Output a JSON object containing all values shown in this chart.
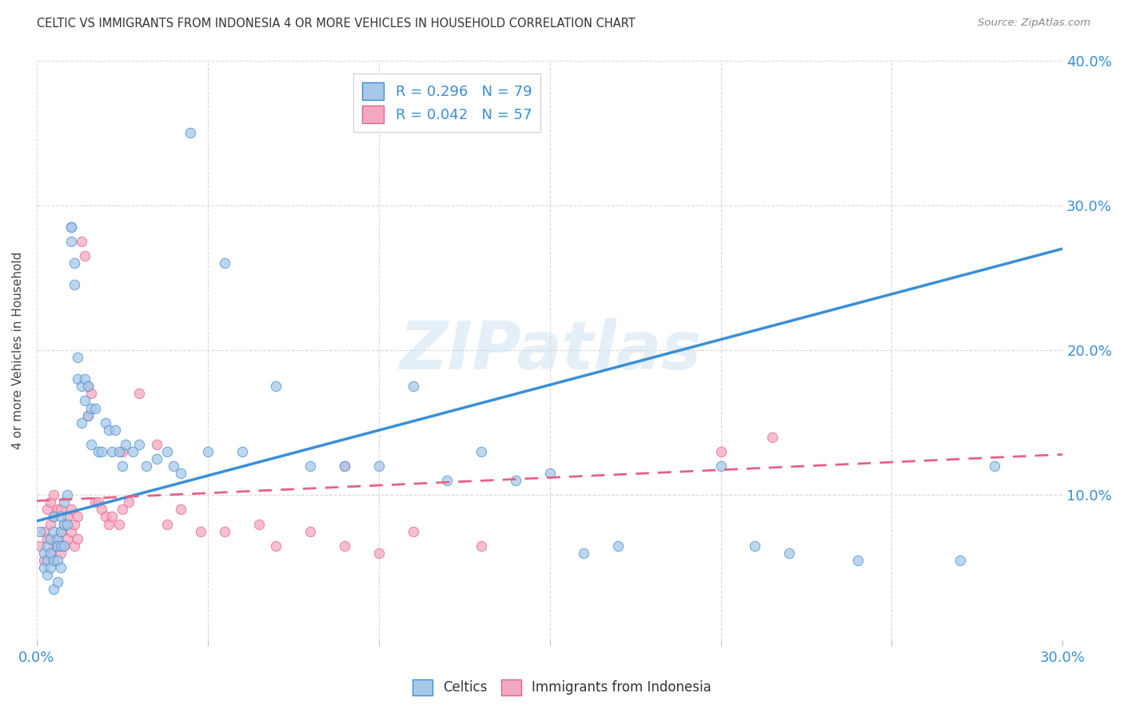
{
  "title": "CELTIC VS IMMIGRANTS FROM INDONESIA 4 OR MORE VEHICLES IN HOUSEHOLD CORRELATION CHART",
  "source": "Source: ZipAtlas.com",
  "ylabel": "4 or more Vehicles in Household",
  "xlim": [
    0.0,
    0.3
  ],
  "ylim": [
    0.0,
    0.4
  ],
  "xticks": [
    0.0,
    0.05,
    0.1,
    0.15,
    0.2,
    0.25,
    0.3
  ],
  "yticks": [
    0.0,
    0.1,
    0.2,
    0.3,
    0.4
  ],
  "legend_labels": [
    "Celtics",
    "Immigrants from Indonesia"
  ],
  "R_celtics": 0.296,
  "N_celtics": 79,
  "R_indonesia": 0.042,
  "N_indonesia": 57,
  "color_celtics": "#a8c8e8",
  "color_indonesia": "#f4a8c0",
  "color_line_celtics": "#3a8fd4",
  "color_line_indonesia": "#e8608a",
  "watermark": "ZIPatlas",
  "blue_line_x0": 0.0,
  "blue_line_y0": 0.082,
  "blue_line_x1": 0.3,
  "blue_line_y1": 0.27,
  "pink_line_x0": 0.0,
  "pink_line_y0": 0.096,
  "pink_line_x1": 0.3,
  "pink_line_y1": 0.128,
  "celtics_x": [
    0.001,
    0.002,
    0.002,
    0.003,
    0.003,
    0.003,
    0.004,
    0.004,
    0.004,
    0.005,
    0.005,
    0.005,
    0.005,
    0.006,
    0.006,
    0.006,
    0.006,
    0.007,
    0.007,
    0.007,
    0.007,
    0.008,
    0.008,
    0.008,
    0.009,
    0.009,
    0.01,
    0.01,
    0.01,
    0.011,
    0.011,
    0.012,
    0.012,
    0.013,
    0.013,
    0.014,
    0.014,
    0.015,
    0.015,
    0.016,
    0.016,
    0.017,
    0.018,
    0.019,
    0.02,
    0.021,
    0.022,
    0.023,
    0.024,
    0.025,
    0.026,
    0.028,
    0.03,
    0.032,
    0.035,
    0.038,
    0.04,
    0.042,
    0.045,
    0.05,
    0.055,
    0.06,
    0.07,
    0.08,
    0.09,
    0.1,
    0.11,
    0.12,
    0.13,
    0.14,
    0.15,
    0.16,
    0.17,
    0.2,
    0.21,
    0.22,
    0.24,
    0.27,
    0.28
  ],
  "celtics_y": [
    0.075,
    0.06,
    0.05,
    0.065,
    0.055,
    0.045,
    0.07,
    0.06,
    0.05,
    0.075,
    0.085,
    0.055,
    0.035,
    0.07,
    0.065,
    0.055,
    0.04,
    0.085,
    0.075,
    0.065,
    0.05,
    0.095,
    0.08,
    0.065,
    0.1,
    0.08,
    0.285,
    0.285,
    0.275,
    0.26,
    0.245,
    0.195,
    0.18,
    0.175,
    0.15,
    0.18,
    0.165,
    0.175,
    0.155,
    0.16,
    0.135,
    0.16,
    0.13,
    0.13,
    0.15,
    0.145,
    0.13,
    0.145,
    0.13,
    0.12,
    0.135,
    0.13,
    0.135,
    0.12,
    0.125,
    0.13,
    0.12,
    0.115,
    0.35,
    0.13,
    0.26,
    0.13,
    0.175,
    0.12,
    0.12,
    0.12,
    0.175,
    0.11,
    0.13,
    0.11,
    0.115,
    0.06,
    0.065,
    0.12,
    0.065,
    0.06,
    0.055,
    0.055,
    0.12
  ],
  "indonesia_x": [
    0.001,
    0.002,
    0.002,
    0.003,
    0.003,
    0.004,
    0.004,
    0.004,
    0.005,
    0.005,
    0.005,
    0.006,
    0.006,
    0.007,
    0.007,
    0.007,
    0.008,
    0.008,
    0.009,
    0.009,
    0.01,
    0.01,
    0.011,
    0.011,
    0.012,
    0.012,
    0.013,
    0.014,
    0.015,
    0.015,
    0.016,
    0.017,
    0.018,
    0.019,
    0.02,
    0.021,
    0.022,
    0.024,
    0.025,
    0.027,
    0.03,
    0.035,
    0.038,
    0.042,
    0.048,
    0.055,
    0.065,
    0.07,
    0.08,
    0.09,
    0.1,
    0.11,
    0.13,
    0.2,
    0.215,
    0.025,
    0.09
  ],
  "indonesia_y": [
    0.065,
    0.075,
    0.055,
    0.09,
    0.07,
    0.095,
    0.08,
    0.06,
    0.1,
    0.085,
    0.065,
    0.09,
    0.07,
    0.09,
    0.075,
    0.06,
    0.08,
    0.065,
    0.085,
    0.07,
    0.09,
    0.075,
    0.08,
    0.065,
    0.085,
    0.07,
    0.275,
    0.265,
    0.175,
    0.155,
    0.17,
    0.095,
    0.095,
    0.09,
    0.085,
    0.08,
    0.085,
    0.08,
    0.09,
    0.095,
    0.17,
    0.135,
    0.08,
    0.09,
    0.075,
    0.075,
    0.08,
    0.065,
    0.075,
    0.065,
    0.06,
    0.075,
    0.065,
    0.13,
    0.14,
    0.13,
    0.12
  ],
  "background_color": "#ffffff",
  "grid_color": "#d8d8d8",
  "tick_color": "#3a8fd4"
}
